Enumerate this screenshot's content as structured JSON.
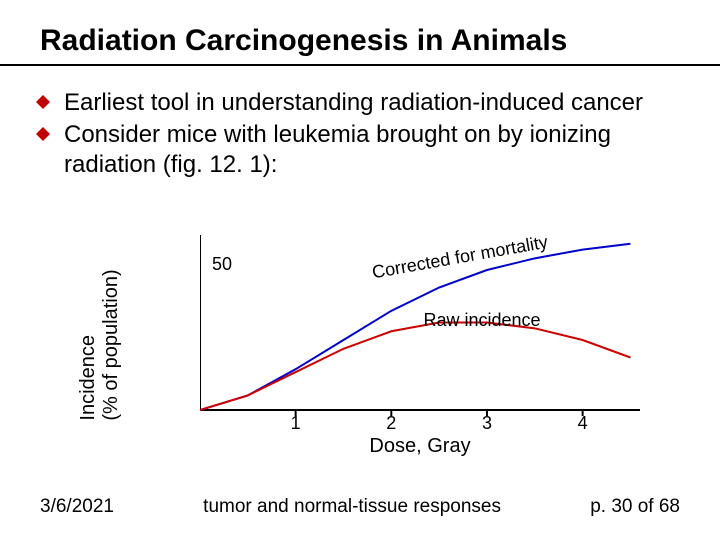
{
  "title": "Radiation Carcinogenesis in Animals",
  "bullets": [
    "Earliest tool in understanding radiation-induced cancer",
    "Consider mice with leukemia brought on by ionizing radiation (fig. 12. 1):"
  ],
  "bullet_color": "#c00000",
  "chart": {
    "type": "line",
    "ylabel": "Incidence\n(% of population)",
    "xlabel": "Dose, Gray",
    "xlim": [
      0,
      4.6
    ],
    "ylim": [
      0,
      60
    ],
    "ytick": {
      "value": 50,
      "label": "50"
    },
    "xticks": [
      {
        "value": 1,
        "label": "1"
      },
      {
        "value": 2,
        "label": "2"
      },
      {
        "value": 3,
        "label": "3"
      },
      {
        "value": 4,
        "label": "4"
      }
    ],
    "axis_color": "#000000",
    "tick_length": 6,
    "line_width": 2,
    "series": [
      {
        "name": "corrected",
        "label": "Corrected for mortality",
        "color": "#0000cc",
        "points": [
          [
            0,
            0
          ],
          [
            0.5,
            5
          ],
          [
            1.0,
            14
          ],
          [
            1.5,
            24
          ],
          [
            2.0,
            34
          ],
          [
            2.5,
            42
          ],
          [
            3.0,
            48
          ],
          [
            3.5,
            52
          ],
          [
            4.0,
            55
          ],
          [
            4.5,
            57
          ]
        ],
        "label_pos": {
          "x": 260,
          "y": 12,
          "rotate": -10
        }
      },
      {
        "name": "raw",
        "label": "Raw incidence",
        "color": "#cc0000",
        "points": [
          [
            0,
            0
          ],
          [
            0.5,
            5
          ],
          [
            1.0,
            13
          ],
          [
            1.5,
            21
          ],
          [
            2.0,
            27
          ],
          [
            2.5,
            30
          ],
          [
            3.0,
            30
          ],
          [
            3.5,
            28
          ],
          [
            4.0,
            24
          ],
          [
            4.5,
            18
          ]
        ],
        "label_pos": {
          "x": 282,
          "y": 75,
          "rotate": 0
        }
      }
    ]
  },
  "footer": {
    "date": "3/6/2021",
    "caption": "tumor and normal-tissue responses",
    "page": "p. 30 of 68"
  }
}
